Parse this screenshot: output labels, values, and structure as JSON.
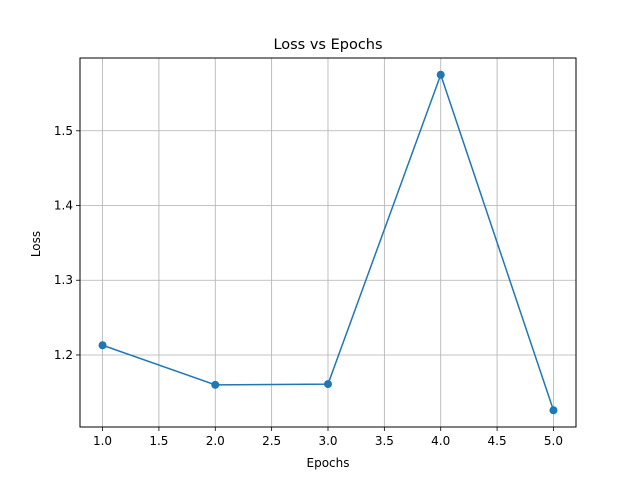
{
  "chart_data": {
    "type": "line",
    "title": "Loss vs Epochs",
    "xlabel": "Epochs",
    "ylabel": "Loss",
    "x": [
      1.0,
      2.0,
      3.0,
      4.0,
      5.0
    ],
    "series": [
      {
        "name": "",
        "values": [
          1.213,
          1.16,
          1.161,
          1.575,
          1.126
        ]
      }
    ],
    "xticks": [
      "1.0",
      "1.5",
      "2.0",
      "2.5",
      "3.0",
      "3.5",
      "4.0",
      "4.5",
      "5.0"
    ],
    "yticks": [
      "1.2",
      "1.3",
      "1.4",
      "1.5"
    ],
    "xlim": [
      0.8,
      5.2
    ],
    "ylim": [
      1.1036,
      1.5974
    ],
    "grid": true,
    "marker": "circle",
    "line_color": "#1f77b4",
    "grid_color": "#b0b0b0"
  }
}
